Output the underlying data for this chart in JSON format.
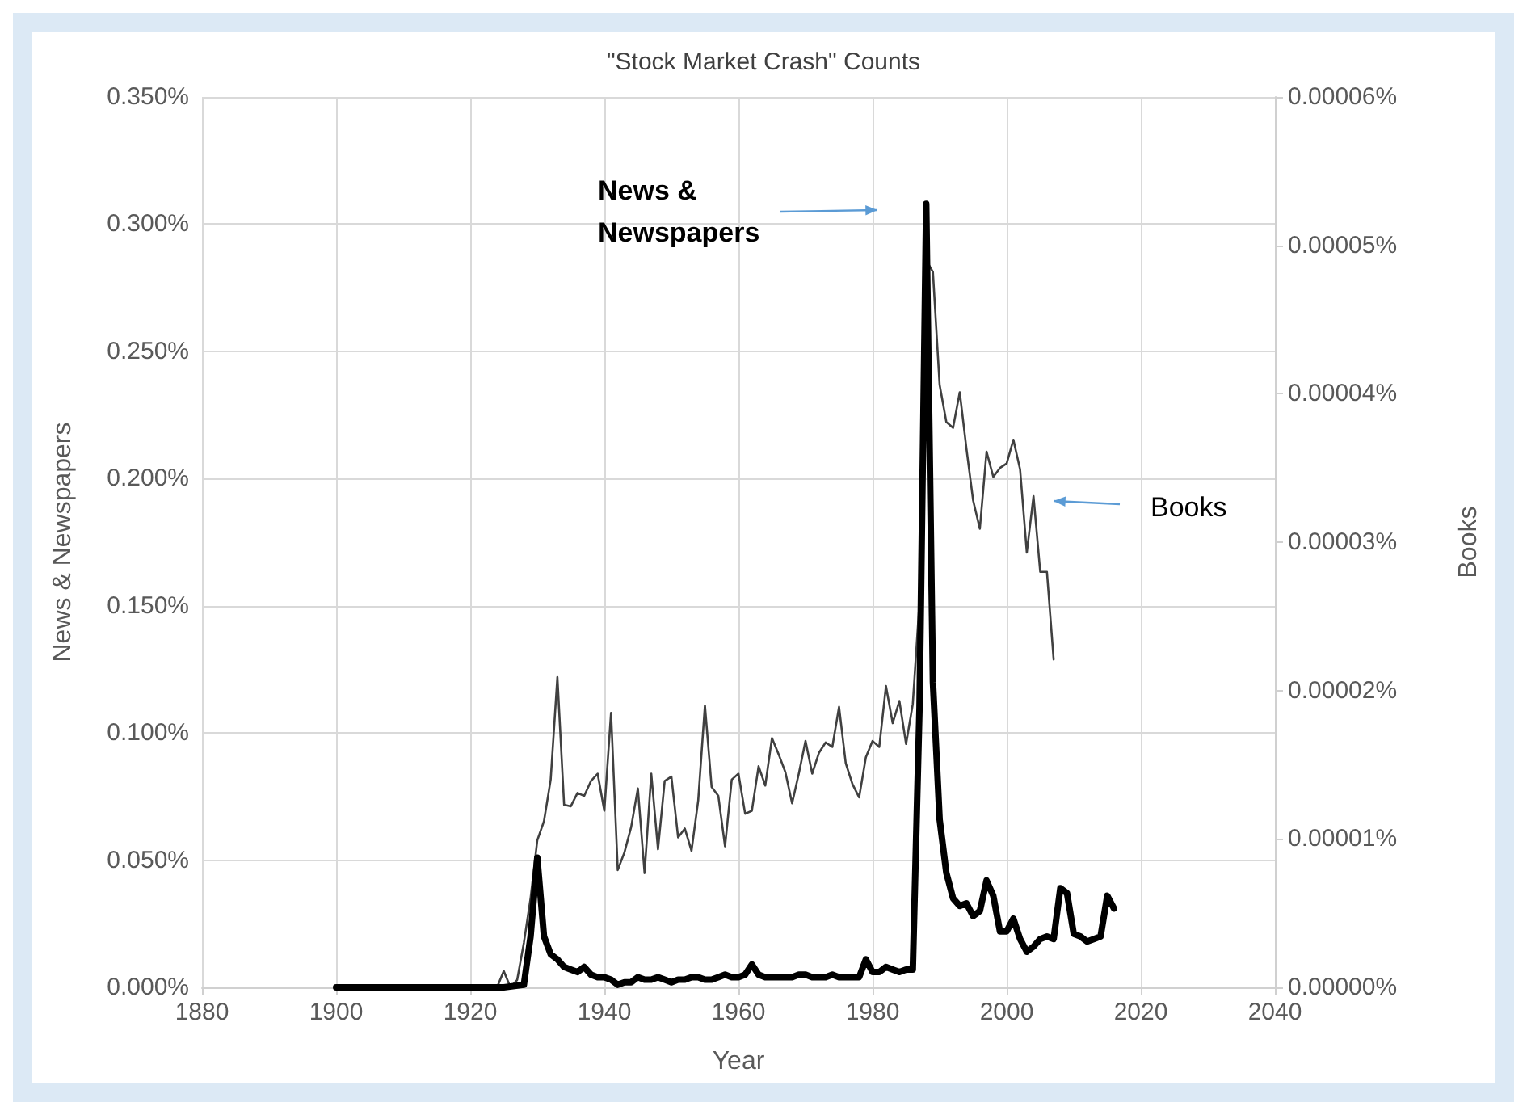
{
  "chart_data": {
    "type": "line",
    "title": "\"Stock Market Crash\" Counts",
    "xlabel": "Year",
    "ylabel": "News & Newspapers",
    "y2label": "Books",
    "xlim": [
      1880,
      2040
    ],
    "xticks": [
      1880,
      1900,
      1920,
      1940,
      1960,
      1980,
      2000,
      2020,
      2040
    ],
    "ylim": [
      0,
      0.35
    ],
    "yticks": [
      {
        "value": 0,
        "label": "0.000%"
      },
      {
        "value": 0.05,
        "label": "0.050%"
      },
      {
        "value": 0.1,
        "label": "0.100%"
      },
      {
        "value": 0.15,
        "label": "0.150%"
      },
      {
        "value": 0.2,
        "label": "0.200%"
      },
      {
        "value": 0.25,
        "label": "0.250%"
      },
      {
        "value": 0.3,
        "label": "0.300%"
      },
      {
        "value": 0.35,
        "label": "0.350%"
      }
    ],
    "y2lim": [
      0,
      6e-05
    ],
    "y2ticks": [
      {
        "value": 0,
        "label": "0.00000%"
      },
      {
        "value": 1e-05,
        "label": "0.00001%"
      },
      {
        "value": 2e-05,
        "label": "0.00002%"
      },
      {
        "value": 3e-05,
        "label": "0.00003%"
      },
      {
        "value": 4e-05,
        "label": "0.00004%"
      },
      {
        "value": 5e-05,
        "label": "0.00005%"
      },
      {
        "value": 6e-05,
        "label": "0.00006%"
      }
    ],
    "grid": true,
    "marker": "none",
    "annotations": [
      "News & Newspapers",
      "Books"
    ],
    "series": [
      {
        "color": "#000000",
        "x": [
          1900,
          1905,
          1910,
          1915,
          1920,
          1925,
          1928,
          1929,
          1930,
          1931,
          1932,
          1933,
          1934,
          1935,
          1936,
          1937,
          1938,
          1939,
          1940,
          1941,
          1942,
          1943,
          1944,
          1945,
          1946,
          1947,
          1948,
          1949,
          1950,
          1951,
          1952,
          1953,
          1954,
          1955,
          1956,
          1957,
          1958,
          1959,
          1960,
          1961,
          1962,
          1963,
          1964,
          1965,
          1966,
          1967,
          1968,
          1969,
          1970,
          1971,
          1972,
          1973,
          1974,
          1975,
          1976,
          1977,
          1978,
          1979,
          1980,
          1981,
          1982,
          1983,
          1984,
          1985,
          1986,
          1987,
          1988,
          1989,
          1990,
          1991,
          1992,
          1993,
          1994,
          1995,
          1996,
          1997,
          1998,
          1999,
          2000,
          2001,
          2002,
          2003,
          2004,
          2005,
          2006,
          2007,
          2008,
          2009,
          2010,
          2011,
          2012,
          2013,
          2014,
          2015,
          2016
        ],
        "values": [
          0,
          0,
          0,
          0,
          0,
          0,
          0.001,
          0.02,
          0.051,
          0.02,
          0.013,
          0.011,
          0.008,
          0.007,
          0.006,
          0.008,
          0.005,
          0.004,
          0.004,
          0.003,
          0.001,
          0.002,
          0.002,
          0.004,
          0.003,
          0.003,
          0.004,
          0.003,
          0.002,
          0.003,
          0.003,
          0.004,
          0.004,
          0.003,
          0.003,
          0.004,
          0.005,
          0.004,
          0.004,
          0.005,
          0.009,
          0.005,
          0.004,
          0.004,
          0.004,
          0.004,
          0.004,
          0.005,
          0.005,
          0.004,
          0.004,
          0.004,
          0.005,
          0.004,
          0.004,
          0.004,
          0.004,
          0.011,
          0.006,
          0.006,
          0.008,
          0.007,
          0.006,
          0.007,
          0.007,
          0.11,
          0.308,
          0.12,
          0.066,
          0.045,
          0.035,
          0.032,
          0.033,
          0.028,
          0.03,
          0.042,
          0.036,
          0.022,
          0.022,
          0.027,
          0.019,
          0.014,
          0.016,
          0.019,
          0.02,
          0.019,
          0.039,
          0.037,
          0.021,
          0.02,
          0.018,
          0.019,
          0.02,
          0.036,
          0.031
        ]
      },
      {
        "color": "#404040",
        "axis": "y2",
        "x": [
          1918,
          1919,
          1923,
          1924,
          1925,
          1926,
          1927,
          1928,
          1929,
          1930,
          1931,
          1932,
          1933,
          1934,
          1935,
          1936,
          1937,
          1938,
          1939,
          1940,
          1941,
          1942,
          1943,
          1944,
          1945,
          1946,
          1947,
          1948,
          1949,
          1950,
          1951,
          1952,
          1953,
          1954,
          1955,
          1956,
          1957,
          1958,
          1959,
          1960,
          1961,
          1962,
          1963,
          1964,
          1965,
          1966,
          1967,
          1968,
          1969,
          1970,
          1971,
          1972,
          1973,
          1974,
          1975,
          1976,
          1977,
          1978,
          1979,
          1980,
          1981,
          1982,
          1983,
          1984,
          1985,
          1986,
          1987,
          1988,
          1989,
          1990,
          1991,
          1992,
          1993,
          1994,
          1995,
          1996,
          1997,
          1998,
          1999,
          2000,
          2001,
          2002,
          2003,
          2004,
          2005,
          2006,
          2007
        ],
        "values": [
          0,
          0,
          0,
          0,
          1.1e-06,
          0,
          5e-07,
          3e-06,
          6e-06,
          9.9e-06,
          1.12e-05,
          1.4e-05,
          2.09e-05,
          1.23e-05,
          1.22e-05,
          1.31e-05,
          1.29e-05,
          1.39e-05,
          1.44e-05,
          1.19e-05,
          1.85e-05,
          7.9e-06,
          9.1e-06,
          1.08e-05,
          1.34e-05,
          7.7e-06,
          1.44e-05,
          9.3e-06,
          1.39e-05,
          1.42e-05,
          1.01e-05,
          1.07e-05,
          9.2e-06,
          1.26e-05,
          1.9e-05,
          1.35e-05,
          1.29e-05,
          9.5e-06,
          1.4e-05,
          1.44e-05,
          1.17e-05,
          1.19e-05,
          1.49e-05,
          1.36e-05,
          1.68e-05,
          1.57e-05,
          1.45e-05,
          1.24e-05,
          1.44e-05,
          1.66e-05,
          1.44e-05,
          1.58e-05,
          1.65e-05,
          1.62e-05,
          1.89e-05,
          1.51e-05,
          1.37e-05,
          1.28e-05,
          1.55e-05,
          1.66e-05,
          1.62e-05,
          2.03e-05,
          1.78e-05,
          1.93e-05,
          1.64e-05,
          1.91e-05,
          2.6e-05,
          4.9e-05,
          4.82e-05,
          4.06e-05,
          3.81e-05,
          3.77e-05,
          4.01e-05,
          3.63e-05,
          3.28e-05,
          3.09e-05,
          3.61e-05,
          3.44e-05,
          3.5e-05,
          3.53e-05,
          3.69e-05,
          3.49e-05,
          2.93e-05,
          3.31e-05,
          2.8e-05,
          2.8e-05,
          2.21e-05
        ]
      }
    ]
  }
}
